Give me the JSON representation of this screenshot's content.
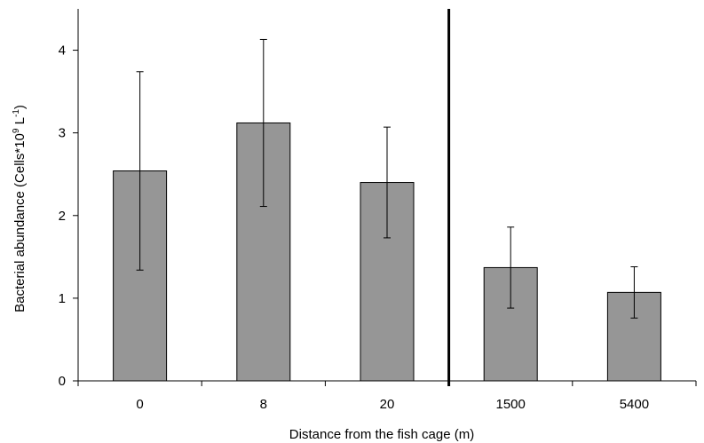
{
  "chart_data": {
    "type": "bar",
    "categories": [
      "0",
      "8",
      "20",
      "1500",
      "5400"
    ],
    "values": [
      2.54,
      3.12,
      2.4,
      1.37,
      1.07
    ],
    "errors": [
      1.2,
      1.01,
      0.67,
      0.49,
      0.31
    ],
    "xlabel": "Distance from the fish cage (m)",
    "ylabel": {
      "prefix": "Bacterial abundance (Cells*10",
      "exponent1": "9",
      "middle": " L",
      "exponent2": "-1",
      "suffix": ")"
    },
    "ylim": [
      0,
      4.5
    ],
    "yticks": [
      "0",
      "1",
      "2",
      "3",
      "4"
    ],
    "grid": false,
    "legend": "none",
    "separator_after_category": "20",
    "bar_color": "#969696"
  }
}
